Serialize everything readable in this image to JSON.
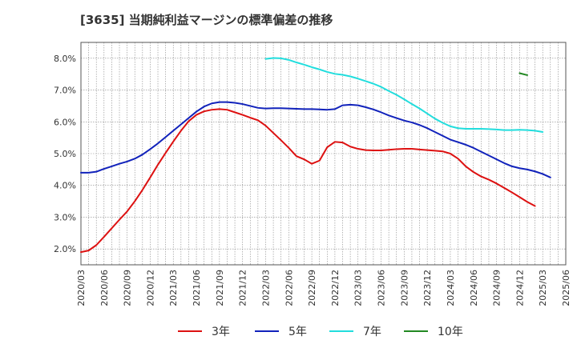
{
  "chart_data": {
    "type": "line",
    "title": "[3635]  当期純利益マージンの標準偏差の推移",
    "xlabel": "",
    "ylabel": "",
    "x_ticks": [
      "2020/03",
      "2020/06",
      "2020/09",
      "2020/12",
      "2021/03",
      "2021/06",
      "2021/09",
      "2021/12",
      "2022/03",
      "2022/06",
      "2022/09",
      "2022/12",
      "2023/03",
      "2023/06",
      "2023/09",
      "2023/12",
      "2024/03",
      "2024/06",
      "2024/09",
      "2024/12",
      "2025/03",
      "2025/06"
    ],
    "y_ticks": [
      "2.0%",
      "3.0%",
      "4.0%",
      "5.0%",
      "6.0%",
      "7.0%",
      "8.0%"
    ],
    "ylim": [
      1.5,
      8.5
    ],
    "grid": true,
    "legend_position": "bottom",
    "series": [
      {
        "name": "3年",
        "color": "#dd1111",
        "start": "2020/03",
        "values": [
          1.9,
          1.95,
          2.12,
          2.38,
          2.65,
          2.92,
          3.18,
          3.5,
          3.86,
          4.25,
          4.65,
          5.02,
          5.38,
          5.72,
          6.02,
          6.22,
          6.33,
          6.38,
          6.4,
          6.38,
          6.3,
          6.22,
          6.13,
          6.05,
          5.88,
          5.65,
          5.42,
          5.18,
          4.92,
          4.82,
          4.68,
          4.78,
          5.2,
          5.37,
          5.35,
          5.22,
          5.15,
          5.11,
          5.1,
          5.1,
          5.12,
          5.14,
          5.15,
          5.15,
          5.13,
          5.11,
          5.09,
          5.07,
          5.0,
          4.84,
          4.6,
          4.42,
          4.28,
          4.18,
          4.06,
          3.92,
          3.78,
          3.63,
          3.48,
          3.35
        ]
      },
      {
        "name": "5年",
        "color": "#1122bb",
        "start": "2020/03",
        "values": [
          4.4,
          4.4,
          4.43,
          4.52,
          4.6,
          4.68,
          4.75,
          4.84,
          4.97,
          5.14,
          5.32,
          5.52,
          5.72,
          5.92,
          6.12,
          6.32,
          6.48,
          6.58,
          6.62,
          6.62,
          6.6,
          6.56,
          6.5,
          6.44,
          6.42,
          6.43,
          6.43,
          6.42,
          6.41,
          6.4,
          6.4,
          6.39,
          6.38,
          6.4,
          6.52,
          6.54,
          6.52,
          6.46,
          6.39,
          6.3,
          6.2,
          6.12,
          6.04,
          5.98,
          5.9,
          5.8,
          5.68,
          5.56,
          5.44,
          5.36,
          5.28,
          5.18,
          5.06,
          4.94,
          4.82,
          4.7,
          4.6,
          4.54,
          4.5,
          4.44,
          4.36,
          4.25
        ]
      },
      {
        "name": "7年",
        "color": "#22dddd",
        "start": "2022/03",
        "values": [
          7.98,
          8.01,
          8.0,
          7.95,
          7.87,
          7.8,
          7.72,
          7.65,
          7.57,
          7.51,
          7.48,
          7.43,
          7.36,
          7.28,
          7.2,
          7.1,
          6.97,
          6.85,
          6.71,
          6.56,
          6.42,
          6.26,
          6.1,
          5.97,
          5.86,
          5.8,
          5.78,
          5.78,
          5.78,
          5.77,
          5.76,
          5.74,
          5.74,
          5.75,
          5.74,
          5.72,
          5.68
        ]
      },
      {
        "name": "10年",
        "color": "#228822",
        "start": "2024/12",
        "values": [
          7.53,
          7.47
        ]
      }
    ]
  }
}
